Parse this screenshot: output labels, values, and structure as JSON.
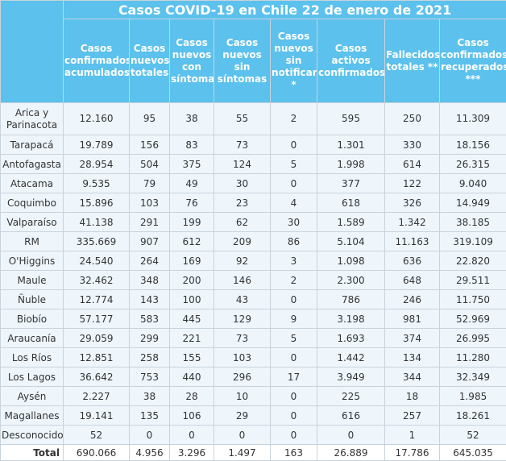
{
  "table": {
    "title": "Casos COVID-19 en Chile 22 de enero de 2021",
    "headers": [
      "Casos confirmados acumulados",
      "Casos nuevos totales",
      "Casos nuevos con síntomas",
      "Casos nuevos sin síntomas",
      "Casos nuevos sin notificar *",
      "Casos activos confirmados",
      "Fallecidos totales **",
      "Casos confirmados recuperados ***"
    ],
    "rows": [
      [
        "Arica y Parinacota",
        "12.160",
        "95",
        "38",
        "55",
        "2",
        "595",
        "250",
        "11.309"
      ],
      [
        "Tarapacá",
        "19.789",
        "156",
        "83",
        "73",
        "0",
        "1.301",
        "330",
        "18.156"
      ],
      [
        "Antofagasta",
        "28.954",
        "504",
        "375",
        "124",
        "5",
        "1.998",
        "614",
        "26.315"
      ],
      [
        "Atacama",
        "9.535",
        "79",
        "49",
        "30",
        "0",
        "377",
        "122",
        "9.040"
      ],
      [
        "Coquimbo",
        "15.896",
        "103",
        "76",
        "23",
        "4",
        "618",
        "326",
        "14.949"
      ],
      [
        "Valparaíso",
        "41.138",
        "291",
        "199",
        "62",
        "30",
        "1.589",
        "1.342",
        "38.185"
      ],
      [
        "RM",
        "335.669",
        "907",
        "612",
        "209",
        "86",
        "5.104",
        "11.163",
        "319.109"
      ],
      [
        "O'Higgins",
        "24.540",
        "264",
        "169",
        "92",
        "3",
        "1.098",
        "636",
        "22.820"
      ],
      [
        "Maule",
        "32.462",
        "348",
        "200",
        "146",
        "2",
        "2.300",
        "648",
        "29.511"
      ],
      [
        "Ñuble",
        "12.774",
        "143",
        "100",
        "43",
        "0",
        "786",
        "246",
        "11.750"
      ],
      [
        "Biobío",
        "57.177",
        "583",
        "445",
        "129",
        "9",
        "3.198",
        "981",
        "52.969"
      ],
      [
        "Araucanía",
        "29.059",
        "299",
        "221",
        "73",
        "5",
        "1.693",
        "374",
        "26.995"
      ],
      [
        "Los Ríos",
        "12.851",
        "258",
        "155",
        "103",
        "0",
        "1.442",
        "134",
        "11.280"
      ],
      [
        "Los Lagos",
        "36.642",
        "753",
        "440",
        "296",
        "17",
        "3.949",
        "344",
        "32.349"
      ],
      [
        "Aysén",
        "2.227",
        "38",
        "28",
        "10",
        "0",
        "225",
        "18",
        "1.985"
      ],
      [
        "Magallanes",
        "19.141",
        "135",
        "106",
        "29",
        "0",
        "616",
        "257",
        "18.261"
      ],
      [
        "Desconocido",
        "52",
        "0",
        "0",
        "0",
        "0",
        "0",
        "1",
        "52"
      ]
    ],
    "total": [
      "Total",
      "690.066",
      "4.956",
      "3.296",
      "1.497",
      "163",
      "26.889",
      "17.786",
      "645.035"
    ]
  }
}
